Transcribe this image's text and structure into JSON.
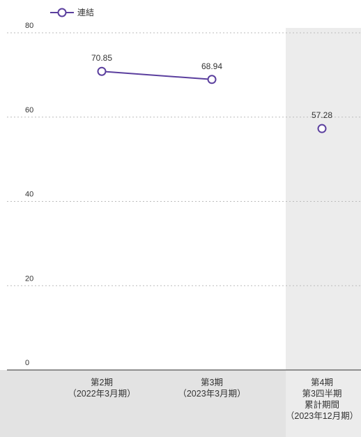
{
  "chart_data": {
    "type": "line",
    "title": "",
    "xlabel": "",
    "ylabel": "",
    "ylim": [
      0,
      80
    ],
    "yticks": [
      "0",
      "20",
      "40",
      "60",
      "80"
    ],
    "grid": "horizontal-dashed",
    "legend_position": "top-left",
    "categories": [
      [
        "第2期",
        "（2022年3月期）"
      ],
      [
        "第3期",
        "（2023年3月期）"
      ],
      [
        "第4期",
        "第3四半期",
        "累計期間",
        "（2023年12月期）"
      ]
    ],
    "highlighted_category_index": 2,
    "series": [
      {
        "name": "連結",
        "color": "#5b3f9e",
        "values": [
          70.85,
          68.94,
          57.28
        ],
        "labels": [
          "70.85",
          "68.94",
          "57.28"
        ],
        "connected": [
          true,
          true,
          false
        ]
      }
    ],
    "colors": {
      "highlight_column": "#ececec",
      "axis_band": "#e3e3e3",
      "grid": "#bbbbbb"
    }
  }
}
